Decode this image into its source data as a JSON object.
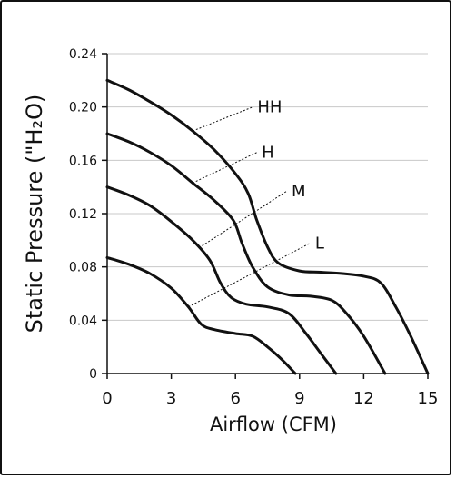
{
  "chart_data": {
    "type": "line",
    "xlabel": "Airflow (CFM)",
    "ylabel": "Static Pressure (\"H₂O)",
    "xlim": [
      0,
      15
    ],
    "ylim": [
      0,
      0.24
    ],
    "x_ticks": [
      "0",
      "3",
      "6",
      "9",
      "12",
      "15"
    ],
    "y_ticks": [
      "0",
      "0.04",
      "0.08",
      "0.12",
      "0.16",
      "0.20",
      "0.24"
    ],
    "grid": "horizontal",
    "series": [
      {
        "name": "HH",
        "points": [
          [
            0,
            0.22
          ],
          [
            1,
            0.213
          ],
          [
            2,
            0.204
          ],
          [
            3,
            0.194
          ],
          [
            4,
            0.182
          ],
          [
            5,
            0.168
          ],
          [
            6,
            0.15
          ],
          [
            6.6,
            0.135
          ],
          [
            7,
            0.115
          ],
          [
            7.5,
            0.095
          ],
          [
            8,
            0.083
          ],
          [
            9,
            0.077
          ],
          [
            10,
            0.076
          ],
          [
            11,
            0.075
          ],
          [
            12,
            0.073
          ],
          [
            12.8,
            0.068
          ],
          [
            13.5,
            0.05
          ],
          [
            14.2,
            0.028
          ],
          [
            15,
            0.0
          ]
        ]
      },
      {
        "name": "H",
        "points": [
          [
            0,
            0.18
          ],
          [
            1,
            0.174
          ],
          [
            2,
            0.166
          ],
          [
            3,
            0.156
          ],
          [
            4,
            0.143
          ],
          [
            5,
            0.13
          ],
          [
            5.9,
            0.115
          ],
          [
            6.3,
            0.098
          ],
          [
            6.8,
            0.08
          ],
          [
            7.5,
            0.065
          ],
          [
            8.5,
            0.059
          ],
          [
            9.5,
            0.058
          ],
          [
            10.5,
            0.055
          ],
          [
            11.2,
            0.045
          ],
          [
            12,
            0.028
          ],
          [
            13,
            0.0
          ]
        ]
      },
      {
        "name": "M",
        "points": [
          [
            0,
            0.14
          ],
          [
            1,
            0.134
          ],
          [
            2,
            0.126
          ],
          [
            3,
            0.114
          ],
          [
            4,
            0.1
          ],
          [
            4.8,
            0.085
          ],
          [
            5.3,
            0.068
          ],
          [
            5.8,
            0.057
          ],
          [
            6.5,
            0.052
          ],
          [
            7.5,
            0.05
          ],
          [
            8.5,
            0.045
          ],
          [
            9.3,
            0.03
          ],
          [
            10,
            0.015
          ],
          [
            10.7,
            0.0
          ]
        ]
      },
      {
        "name": "L",
        "points": [
          [
            0,
            0.087
          ],
          [
            1,
            0.082
          ],
          [
            2,
            0.075
          ],
          [
            3,
            0.064
          ],
          [
            3.8,
            0.05
          ],
          [
            4.4,
            0.037
          ],
          [
            5,
            0.033
          ],
          [
            6,
            0.03
          ],
          [
            6.8,
            0.028
          ],
          [
            7.5,
            0.02
          ],
          [
            8.2,
            0.01
          ],
          [
            8.8,
            0.0
          ]
        ]
      }
    ],
    "annotations": [
      {
        "text": "HH",
        "series": "HH",
        "at_x": 4.0,
        "label_x": 6.9,
        "label_y": 0.2
      },
      {
        "text": "H",
        "series": "H",
        "at_x": 4.0,
        "label_x": 7.1,
        "label_y": 0.166
      },
      {
        "text": "M",
        "series": "M",
        "at_x": 4.3,
        "label_x": 8.5,
        "label_y": 0.137
      },
      {
        "text": "L",
        "series": "L",
        "at_x": 3.8,
        "label_x": 9.6,
        "label_y": 0.098
      }
    ]
  }
}
